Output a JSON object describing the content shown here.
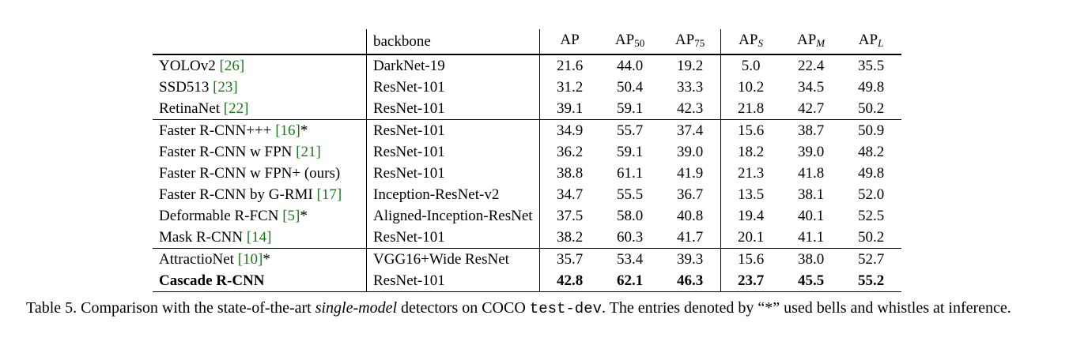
{
  "table": {
    "headers": {
      "method": "",
      "backbone": "backbone",
      "metrics": [
        {
          "main": "AP",
          "sub": "",
          "italic": false
        },
        {
          "main": "AP",
          "sub": "50",
          "italic": false
        },
        {
          "main": "AP",
          "sub": "75",
          "italic": false
        },
        {
          "main": "AP",
          "sub": "S",
          "italic": true
        },
        {
          "main": "AP",
          "sub": "M",
          "italic": true
        },
        {
          "main": "AP",
          "sub": "L",
          "italic": true
        }
      ]
    },
    "rows": [
      {
        "name": "YOLOv2 ",
        "ref": "[26]",
        "suffix": "",
        "backbone": "DarkNet-19",
        "values": [
          "21.6",
          "44.0",
          "19.2",
          "5.0",
          "22.4",
          "35.5"
        ]
      },
      {
        "name": "SSD513 ",
        "ref": "[23]",
        "suffix": "",
        "backbone": "ResNet-101",
        "values": [
          "31.2",
          "50.4",
          "33.3",
          "10.2",
          "34.5",
          "49.8"
        ]
      },
      {
        "name": "RetinaNet ",
        "ref": "[22]",
        "suffix": "",
        "backbone": "ResNet-101",
        "values": [
          "39.1",
          "59.1",
          "42.3",
          "21.8",
          "42.7",
          "50.2"
        ]
      },
      {
        "name": "Faster R-CNN+++ ",
        "ref": "[16]",
        "suffix": "*",
        "backbone": "ResNet-101",
        "values": [
          "34.9",
          "55.7",
          "37.4",
          "15.6",
          "38.7",
          "50.9"
        ]
      },
      {
        "name": "Faster R-CNN w FPN ",
        "ref": "[21]",
        "suffix": "",
        "backbone": "ResNet-101",
        "values": [
          "36.2",
          "59.1",
          "39.0",
          "18.2",
          "39.0",
          "48.2"
        ]
      },
      {
        "name": "Faster R-CNN w FPN+ (ours)",
        "ref": "",
        "suffix": "",
        "backbone": "ResNet-101",
        "values": [
          "38.8",
          "61.1",
          "41.9",
          "21.3",
          "41.8",
          "49.8"
        ]
      },
      {
        "name": "Faster R-CNN by G-RMI ",
        "ref": "[17]",
        "suffix": "",
        "backbone": "Inception-ResNet-v2",
        "values": [
          "34.7",
          "55.5",
          "36.7",
          "13.5",
          "38.1",
          "52.0"
        ]
      },
      {
        "name": "Deformable R-FCN ",
        "ref": "[5]",
        "suffix": "*",
        "backbone": "Aligned-Inception-ResNet",
        "values": [
          "37.5",
          "58.0",
          "40.8",
          "19.4",
          "40.1",
          "52.5"
        ]
      },
      {
        "name": "Mask R-CNN ",
        "ref": "[14]",
        "suffix": "",
        "backbone": "ResNet-101",
        "values": [
          "38.2",
          "60.3",
          "41.7",
          "20.1",
          "41.1",
          "50.2"
        ]
      },
      {
        "name": "AttractioNet ",
        "ref": "[10]",
        "suffix": "*",
        "backbone": "VGG16+Wide ResNet",
        "values": [
          "35.7",
          "53.4",
          "39.3",
          "15.6",
          "38.0",
          "52.7"
        ]
      },
      {
        "name": "Cascade R-CNN",
        "ref": "",
        "suffix": "",
        "backbone": "ResNet-101",
        "values": [
          "42.8",
          "62.1",
          "46.3",
          "23.7",
          "45.5",
          "55.2"
        ]
      }
    ]
  },
  "caption": {
    "lead": "Table 5. Comparison with the state-of-the-art ",
    "emph": "single-model",
    "mid": " detectors on COCO ",
    "code": "test-dev",
    "tail": ". The entries denoted by “*” used bells and whistles at inference."
  }
}
